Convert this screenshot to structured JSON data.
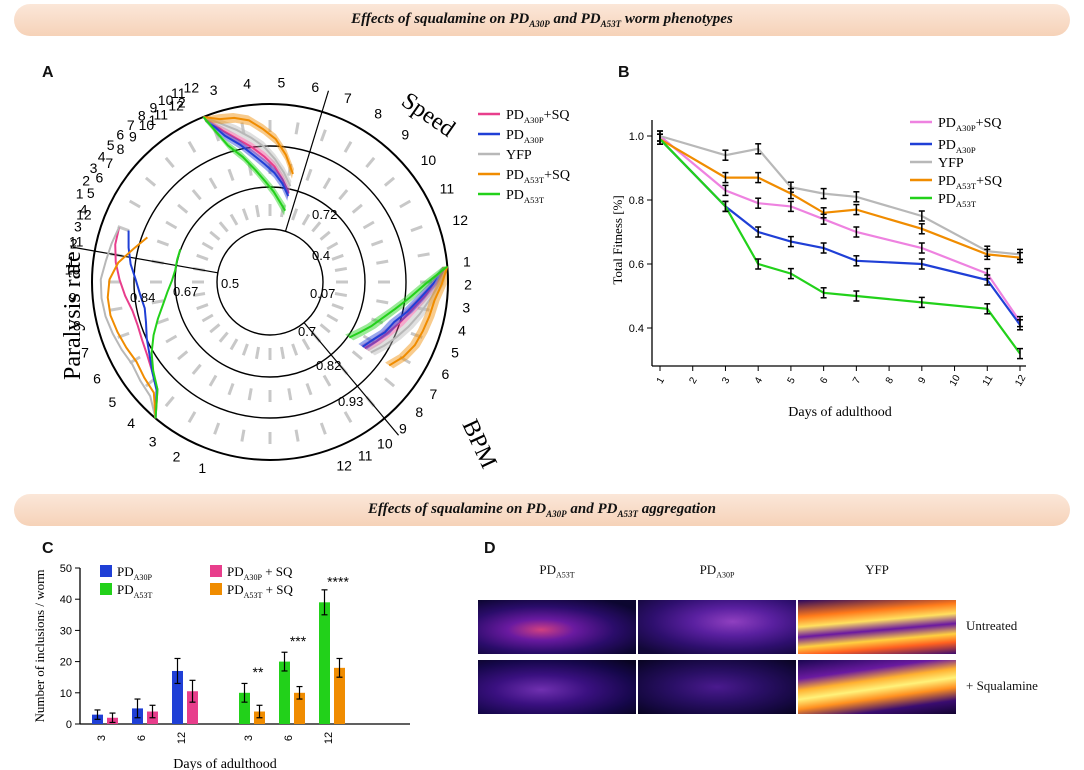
{
  "banner_top": {
    "pre": "Effects of squalamine on ",
    "s1": "PD",
    "s1sub": "A30P",
    "mid": " and ",
    "s2": "PD",
    "s2sub": "A53T",
    "post": " worm phenotypes"
  },
  "banner_mid": {
    "pre": "Effects of squalamine on ",
    "s1": "PD",
    "s1sub": "A30P",
    "mid": " and ",
    "s2": "PD",
    "s2sub": "A53T",
    "post": " aggregation"
  },
  "panel_labels": {
    "a": "A",
    "b": "B",
    "c": "C",
    "d": "D"
  },
  "colors": {
    "pink": "#e83e8c",
    "blue": "#1f3fd6",
    "grey": "#b8b8b8",
    "orange": "#f08c00",
    "green": "#22d11a"
  },
  "legend": [
    {
      "base": "PD",
      "sub": "A30P",
      "suffix": "+SQ",
      "color": "#e83e8c"
    },
    {
      "base": "PD",
      "sub": "A30P",
      "suffix": "",
      "color": "#1f3fd6"
    },
    {
      "base": "YFP",
      "sub": "",
      "suffix": "",
      "color": "#b8b8b8"
    },
    {
      "base": "PD",
      "sub": "A53T",
      "suffix": "+SQ",
      "color": "#f08c00"
    },
    {
      "base": "PD",
      "sub": "A53T",
      "suffix": "",
      "color": "#22d11a"
    }
  ],
  "chart_data": [
    {
      "type": "line",
      "subtype": "radar",
      "axes": [
        {
          "name": "Speed",
          "days": [
            "1",
            "2",
            "3",
            "4",
            "5",
            "6",
            "7",
            "8",
            "9",
            "10",
            "11",
            "12"
          ],
          "ring_labels": [
            "0.07",
            "0.4",
            "0.72"
          ]
        },
        {
          "name": "BPM",
          "days": [
            "1",
            "2",
            "3",
            "4",
            "5",
            "6",
            "7",
            "8",
            "9",
            "10",
            "11",
            "12"
          ],
          "ring_labels": [
            "0.7",
            "0.82",
            "0.93"
          ]
        },
        {
          "name": "Paralysis rate",
          "days": [
            "1",
            "2",
            "3",
            "4",
            "5",
            "6",
            "7",
            "8",
            "9",
            "10",
            "11",
            "12"
          ],
          "ring_labels": [
            "0.5",
            "0.67",
            "0.84"
          ]
        }
      ],
      "series": [
        {
          "name": "PDA30P+SQ",
          "speed": [
            1,
            0.84,
            0.74,
            0.66,
            0.58,
            0.5,
            0.4,
            0.3
          ],
          "bpm": [
            1,
            0.9,
            0.8,
            0.72,
            0.66,
            0.6,
            0.55,
            0.5
          ],
          "paralysis": [
            1,
            0.82,
            0.76,
            0.72,
            0.7,
            0.69,
            0.7,
            0.74,
            0.78,
            0.82,
            0.85,
            0.86
          ]
        },
        {
          "name": "PDA30P",
          "speed": [
            1,
            0.8,
            0.7,
            0.6,
            0.52,
            0.45,
            0.37,
            0.28
          ],
          "bpm": [
            1,
            0.88,
            0.78,
            0.7,
            0.62,
            0.58,
            0.52,
            0.48
          ],
          "paralysis": [
            1,
            0.83,
            0.76,
            0.7,
            0.66,
            0.62,
            0.6,
            0.62,
            0.65,
            0.7,
            0.74,
            0.78
          ]
        },
        {
          "name": "YFP",
          "speed": [
            1,
            0.9,
            0.82,
            0.74,
            0.66,
            0.56,
            0.46,
            0.36
          ],
          "bpm": [
            1,
            0.93,
            0.86,
            0.8,
            0.74,
            0.68,
            0.62,
            0.56
          ],
          "paralysis": [
            1,
            0.9,
            0.88,
            0.86,
            0.88,
            0.9,
            0.92,
            0.93,
            0.93,
            0.9,
            0.88,
            0.86
          ]
        },
        {
          "name": "PDA53T+SQ",
          "speed": [
            1,
            0.94,
            0.92,
            0.88,
            0.8,
            0.72,
            0.6,
            0.46
          ],
          "bpm": [
            1,
            0.95,
            0.9,
            0.88,
            0.86,
            0.84,
            0.8,
            0.74
          ],
          "paralysis": [
            1,
            0.86,
            0.84,
            0.82,
            0.84,
            0.86,
            0.88,
            0.88,
            0.86,
            0.8,
            0.7,
            0.62
          ]
        },
        {
          "name": "PDA53T",
          "speed": [
            1,
            0.72,
            0.6,
            0.48,
            0.38,
            0.3,
            0.22,
            0.16
          ],
          "bpm": [
            1,
            0.82,
            0.7,
            0.6,
            0.52,
            0.46,
            0.4,
            0.35
          ],
          "paralysis": [
            1,
            0.82,
            0.75,
            0.68,
            0.6,
            0.52,
            0.45,
            0.4,
            0.36,
            0.34,
            0.34,
            0.34
          ]
        }
      ]
    },
    {
      "type": "line",
      "xlabel": "Days of adulthood",
      "ylabel": "Total Fitness [%]",
      "x": [
        1,
        2,
        3,
        4,
        5,
        6,
        7,
        8,
        9,
        10,
        11,
        12
      ],
      "x_ticks": [
        "1",
        "2",
        "3",
        "4",
        "5",
        "6",
        "7",
        "8",
        "9",
        "10",
        "11",
        "12"
      ],
      "ylim": [
        0.3,
        1.05
      ],
      "y_ticks": [
        "0.4",
        "0.6",
        "0.8",
        "1.0"
      ],
      "series": [
        {
          "name": "PDA30P+SQ",
          "points": [
            [
              1,
              1.0
            ],
            [
              3,
              0.83
            ],
            [
              4,
              0.79
            ],
            [
              5,
              0.78
            ],
            [
              6,
              0.74
            ],
            [
              7,
              0.7
            ],
            [
              9,
              0.65
            ],
            [
              11,
              0.57
            ],
            [
              12,
              0.42
            ]
          ]
        },
        {
          "name": "PDA30P",
          "points": [
            [
              1,
              0.99
            ],
            [
              3,
              0.78
            ],
            [
              4,
              0.7
            ],
            [
              5,
              0.67
            ],
            [
              6,
              0.65
            ],
            [
              7,
              0.61
            ],
            [
              9,
              0.6
            ],
            [
              11,
              0.55
            ],
            [
              12,
              0.41
            ]
          ]
        },
        {
          "name": "YFP",
          "points": [
            [
              1,
              1.0
            ],
            [
              3,
              0.94
            ],
            [
              4,
              0.96
            ],
            [
              5,
              0.84
            ],
            [
              6,
              0.82
            ],
            [
              7,
              0.81
            ],
            [
              9,
              0.75
            ],
            [
              11,
              0.64
            ],
            [
              12,
              0.63
            ]
          ]
        },
        {
          "name": "PDA53T+SQ",
          "points": [
            [
              1,
              0.99
            ],
            [
              3,
              0.87
            ],
            [
              4,
              0.87
            ],
            [
              5,
              0.82
            ],
            [
              6,
              0.76
            ],
            [
              7,
              0.77
            ],
            [
              9,
              0.71
            ],
            [
              11,
              0.63
            ],
            [
              12,
              0.62
            ]
          ]
        },
        {
          "name": "PDA53T",
          "points": [
            [
              1,
              0.99
            ],
            [
              3,
              0.78
            ],
            [
              4,
              0.6
            ],
            [
              5,
              0.57
            ],
            [
              6,
              0.51
            ],
            [
              7,
              0.5
            ],
            [
              9,
              0.48
            ],
            [
              11,
              0.46
            ],
            [
              12,
              0.32
            ]
          ]
        }
      ]
    },
    {
      "type": "bar",
      "xlabel": "Days of adulthood",
      "ylabel": "Number of inclusions / worm",
      "ylim": [
        0,
        50
      ],
      "y_ticks": [
        "0",
        "10",
        "20",
        "30",
        "40",
        "50"
      ],
      "categories": [
        "3",
        "6",
        "12",
        "3",
        "6",
        "12"
      ],
      "series": [
        {
          "name": "PDA30P",
          "values": [
            3,
            5,
            17,
            null,
            null,
            null
          ]
        },
        {
          "name": "PDA30P + SQ",
          "values": [
            2,
            4,
            10.5,
            null,
            null,
            null
          ]
        },
        {
          "name": "PDA53T",
          "values": [
            null,
            null,
            null,
            10,
            20,
            39
          ]
        },
        {
          "name": "PDA53T + SQ",
          "values": [
            null,
            null,
            null,
            4,
            10,
            18
          ]
        }
      ],
      "errors": [
        [
          1.5,
          3,
          4,
          null,
          null,
          null
        ],
        [
          1.5,
          2,
          3.5,
          null,
          null,
          null
        ],
        [
          null,
          null,
          null,
          3,
          3,
          4
        ],
        [
          null,
          null,
          null,
          2,
          2,
          3
        ]
      ],
      "annotations": [
        "**",
        "***",
        "****"
      ],
      "legend": [
        {
          "base": "PD",
          "sub": "A30P",
          "suffix": "",
          "color": "#1f3fd6"
        },
        {
          "base": "PD",
          "sub": "A30P",
          "suffix": " + SQ",
          "color": "#e83e8c"
        },
        {
          "base": "PD",
          "sub": "A53T",
          "suffix": "",
          "color": "#22d11a"
        },
        {
          "base": "PD",
          "sub": "A53T",
          "suffix": " + SQ",
          "color": "#f08c00"
        }
      ]
    }
  ],
  "micrographs": {
    "cols": [
      {
        "base": "PD",
        "sub": "A53T"
      },
      {
        "base": "PD",
        "sub": "A30P"
      },
      {
        "base": "YFP",
        "sub": ""
      }
    ],
    "rows": [
      "Untreated",
      "+ Squalamine"
    ]
  }
}
